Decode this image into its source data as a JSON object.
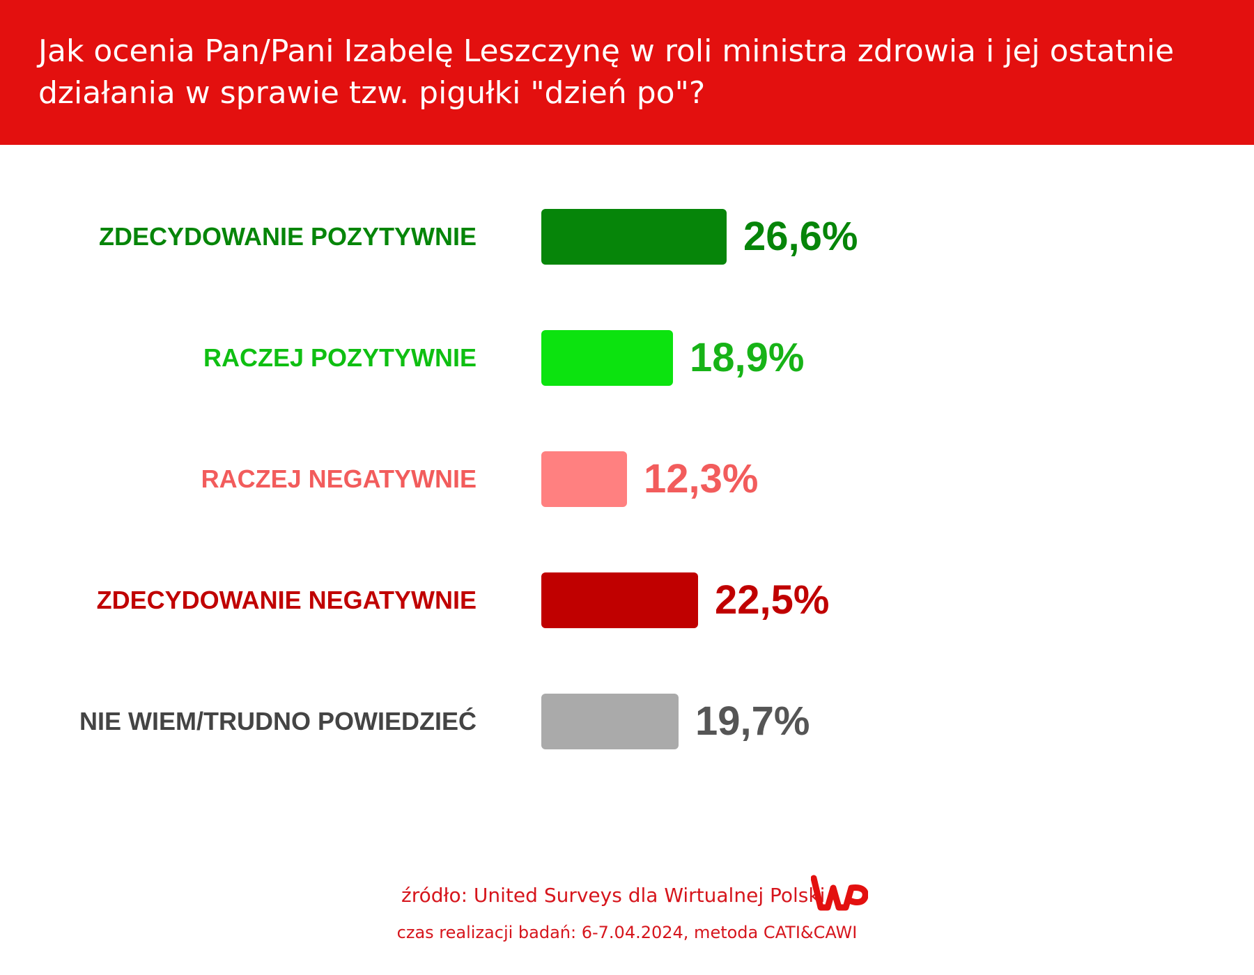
{
  "header": {
    "title_line1": "Jak ocenia Pan/Pani Izabelę Leszczynę w roli ministra zdrowia i jej ostatnie",
    "title_line2": "działania w sprawie tzw. pigułki \"dzień po\"?"
  },
  "chart_data": {
    "type": "bar",
    "orientation": "horizontal",
    "unit": "%",
    "categories": [
      "ZDECYDOWANIE POZYTYWNIE",
      "RACZEJ POZYTYWNIE",
      "RACZEJ NEGATYWNIE",
      "ZDECYDOWANIE NEGATYWNIE",
      "NIE WIEM/TRUDNO POWIEDZIEĆ"
    ],
    "values": [
      26.6,
      18.9,
      12.3,
      22.5,
      19.7
    ],
    "value_labels": [
      "26,6%",
      "18,9%",
      "12,3%",
      "22,5%",
      "19,7%"
    ],
    "bar_colors": [
      "#068509",
      "#0ce30f",
      "#ff8080",
      "#c00000",
      "#aaaaaa"
    ],
    "label_colors": [
      "#068509",
      "#0fbf12",
      "#f25c5c",
      "#c00000",
      "#444444"
    ],
    "value_colors": [
      "#068509",
      "#17b317",
      "#f25c5c",
      "#c00000",
      "#555555"
    ],
    "grid": false,
    "legend": "none"
  },
  "footer": {
    "source": "źródło: United Surveys dla Wirtualnej Polski",
    "method": "czas realizacji badań: 6-7.04.2024, metoda CATI&CAWI",
    "logo_icon": "wp-logo"
  }
}
